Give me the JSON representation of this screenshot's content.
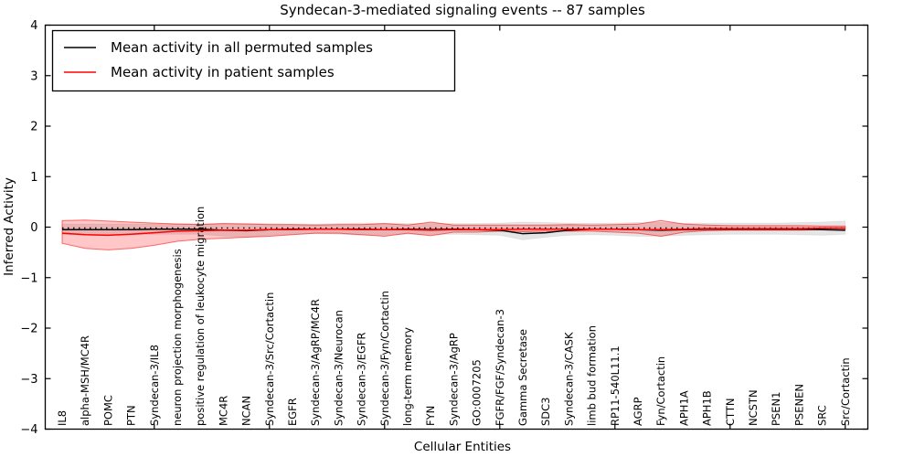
{
  "chart_data": {
    "type": "line",
    "title": "Syndecan-3-mediated signaling events -- 87 samples",
    "xlabel": "Cellular Entities",
    "ylabel": "Inferred Activity",
    "ylim": [
      -4,
      4
    ],
    "yticks": [
      4,
      3,
      2,
      1,
      0,
      -1,
      -2,
      -3,
      -4
    ],
    "grid": false,
    "legend_position": "upper-left",
    "colors": {
      "permuted_line": "#000000",
      "patient_line": "#ff0000",
      "patient_band_fill": "rgba(255,0,0,0.22)",
      "patient_band_edge": "rgba(255,0,0,0.55)",
      "permuted_band_fill": "rgba(0,0,0,0.10)",
      "zero_line": "#000000"
    },
    "series_meta": {
      "permuted_label": "Mean activity in all permuted samples",
      "patient_label": "Mean activity in patient samples"
    },
    "categories": [
      "IL8",
      "alpha-MSH/MC4R",
      "POMC",
      "PTN",
      "Syndecan-3/IL8",
      "neuron projection morphogenesis",
      "positive regulation of leukocyte migration",
      "MC4R",
      "NCAN",
      "Syndecan-3/Src/Cortactin",
      "EGFR",
      "Syndecan-3/AgRP/MC4R",
      "Syndecan-3/Neurocan",
      "Syndecan-3/EGFR",
      "Syndecan-3/Fyn/Cortactin",
      "long-term memory",
      "FYN",
      "Syndecan-3/AgRP",
      "GO:0007205",
      "FGFR/FGF/Syndecan-3",
      "Gamma Secretase",
      "SDC3",
      "Syndecan-3/CASK",
      "limb bud formation",
      "RP11-540L11.1",
      "AGRP",
      "Fyn/Cortactin",
      "APH1A",
      "APH1B",
      "CTTN",
      "NCSTN",
      "PSEN1",
      "PSENEN",
      "SRC",
      "Src/Cortactin"
    ],
    "series": [
      {
        "name": "Mean activity in all permuted samples",
        "values": [
          -0.05,
          -0.05,
          -0.05,
          -0.05,
          -0.04,
          -0.04,
          -0.04,
          -0.06,
          -0.07,
          -0.05,
          -0.04,
          -0.04,
          -0.04,
          -0.04,
          -0.05,
          -0.04,
          -0.05,
          -0.04,
          -0.05,
          -0.06,
          -0.13,
          -0.11,
          -0.06,
          -0.04,
          -0.04,
          -0.05,
          -0.06,
          -0.05,
          -0.04,
          -0.04,
          -0.04,
          -0.04,
          -0.04,
          -0.05,
          -0.06
        ]
      },
      {
        "name": "Mean activity in patient samples",
        "values": [
          -0.12,
          -0.15,
          -0.16,
          -0.14,
          -0.11,
          -0.08,
          -0.07,
          -0.06,
          -0.06,
          -0.05,
          -0.05,
          -0.04,
          -0.04,
          -0.05,
          -0.05,
          -0.05,
          -0.06,
          -0.05,
          -0.05,
          -0.05,
          -0.04,
          -0.04,
          -0.04,
          -0.04,
          -0.04,
          -0.05,
          -0.05,
          -0.04,
          -0.03,
          -0.03,
          -0.03,
          -0.03,
          -0.03,
          -0.02,
          -0.02
        ]
      }
    ],
    "bands": [
      {
        "name": "permuted-range",
        "upper": [
          0.06,
          0.06,
          0.06,
          0.06,
          0.06,
          0.07,
          0.07,
          0.08,
          0.08,
          0.07,
          0.06,
          0.06,
          0.07,
          0.08,
          0.08,
          0.07,
          0.07,
          0.07,
          0.07,
          0.08,
          0.1,
          0.09,
          0.08,
          0.08,
          0.08,
          0.09,
          0.09,
          0.08,
          0.08,
          0.08,
          0.08,
          0.08,
          0.09,
          0.1,
          0.12
        ],
        "lower": [
          -0.15,
          -0.15,
          -0.16,
          -0.15,
          -0.14,
          -0.14,
          -0.14,
          -0.18,
          -0.2,
          -0.16,
          -0.14,
          -0.13,
          -0.14,
          -0.16,
          -0.16,
          -0.14,
          -0.15,
          -0.14,
          -0.15,
          -0.16,
          -0.25,
          -0.2,
          -0.16,
          -0.15,
          -0.16,
          -0.18,
          -0.18,
          -0.16,
          -0.15,
          -0.14,
          -0.14,
          -0.14,
          -0.15,
          -0.16,
          -0.14
        ]
      },
      {
        "name": "patient-range",
        "upper": [
          0.13,
          0.14,
          0.12,
          0.1,
          0.08,
          0.06,
          0.05,
          0.07,
          0.06,
          0.05,
          0.05,
          0.04,
          0.05,
          0.05,
          0.07,
          0.04,
          0.1,
          0.04,
          0.04,
          0.04,
          0.04,
          0.04,
          0.05,
          0.04,
          0.05,
          0.06,
          0.13,
          0.06,
          0.04,
          0.03,
          0.03,
          0.03,
          0.03,
          0.02,
          0.02
        ],
        "lower": [
          -0.32,
          -0.42,
          -0.45,
          -0.42,
          -0.36,
          -0.28,
          -0.24,
          -0.22,
          -0.2,
          -0.18,
          -0.15,
          -0.12,
          -0.12,
          -0.15,
          -0.18,
          -0.12,
          -0.17,
          -0.1,
          -0.1,
          -0.08,
          -0.09,
          -0.08,
          -0.08,
          -0.08,
          -0.1,
          -0.12,
          -0.18,
          -0.1,
          -0.07,
          -0.06,
          -0.06,
          -0.06,
          -0.06,
          -0.05,
          -0.05
        ]
      }
    ],
    "zero_line_value": 0
  }
}
